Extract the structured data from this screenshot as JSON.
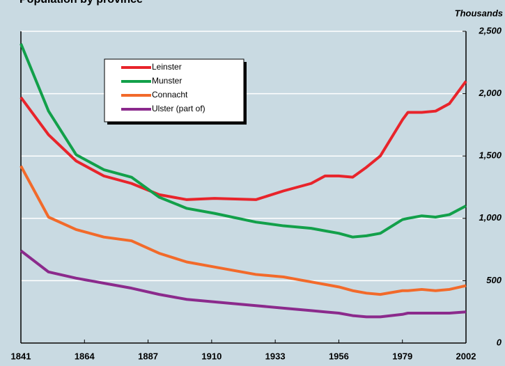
{
  "chart_data": {
    "type": "line",
    "title": "Population by province",
    "y_axis_label": "Thousands",
    "x": [
      1841,
      1851,
      1861,
      1871,
      1881,
      1891,
      1901,
      1911,
      1926,
      1936,
      1946,
      1951,
      1956,
      1961,
      1966,
      1971,
      1979,
      1981,
      1986,
      1991,
      1996,
      2002
    ],
    "xlim": [
      1841,
      2002
    ],
    "xticks": [
      1841,
      1864,
      1887,
      1910,
      1933,
      1956,
      1979,
      2002
    ],
    "ylim": [
      0,
      2500
    ],
    "yticks": [
      0,
      500,
      {
        "value": 1000,
        "label": "1,000"
      },
      {
        "value": 1500,
        "label": "1,500"
      },
      {
        "value": 2000,
        "label": "2,000"
      },
      {
        "value": 2500,
        "label": "2,500"
      }
    ],
    "grid": true,
    "legend": "upper-left",
    "series": [
      {
        "name": "Leinster",
        "color": "#e8242b",
        "values": [
          1970,
          1670,
          1460,
          1340,
          1280,
          1190,
          1150,
          1160,
          1150,
          1220,
          1280,
          1340,
          1340,
          1330,
          1410,
          1500,
          1790,
          1850,
          1850,
          1860,
          1920,
          2100
        ]
      },
      {
        "name": "Munster",
        "color": "#12a04a",
        "values": [
          2400,
          1860,
          1510,
          1390,
          1330,
          1170,
          1080,
          1040,
          970,
          940,
          920,
          900,
          880,
          850,
          860,
          880,
          990,
          1000,
          1020,
          1010,
          1030,
          1100
        ]
      },
      {
        "name": "Connacht",
        "color": "#f26a2a",
        "values": [
          1420,
          1010,
          910,
          850,
          820,
          720,
          650,
          610,
          550,
          530,
          490,
          470,
          450,
          420,
          400,
          390,
          420,
          420,
          430,
          420,
          430,
          460
        ]
      },
      {
        "name": "Ulster (part of)",
        "color": "#8b2a8c",
        "values": [
          740,
          570,
          520,
          480,
          440,
          390,
          350,
          330,
          300,
          280,
          260,
          250,
          240,
          220,
          210,
          210,
          230,
          240,
          240,
          240,
          240,
          250
        ]
      }
    ]
  }
}
